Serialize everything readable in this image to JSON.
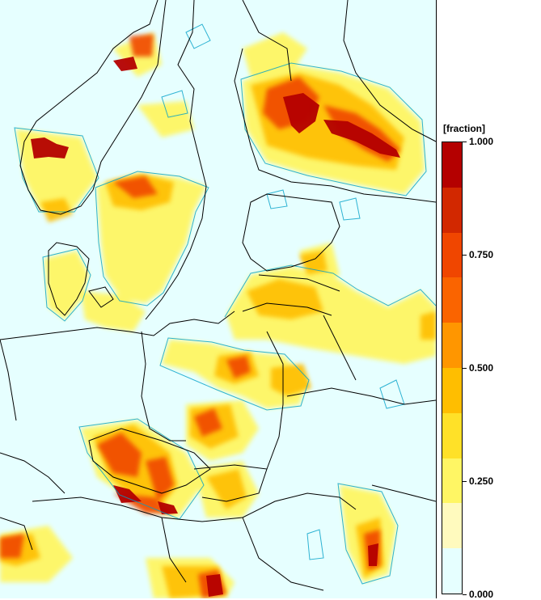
{
  "legend": {
    "unit": "[fraction]",
    "ticks": [
      {
        "value": 1.0,
        "label": "1.000"
      },
      {
        "value": 0.75,
        "label": "0.750"
      },
      {
        "value": 0.5,
        "label": "0.500"
      },
      {
        "value": 0.25,
        "label": "0.250"
      },
      {
        "value": 0.0,
        "label": "0.000"
      }
    ],
    "colors_top_to_bottom": [
      "#b40000",
      "#d22800",
      "#f04600",
      "#fa6400",
      "#ff9600",
      "#ffbe00",
      "#ffe128",
      "#fff664",
      "#fffabe",
      "#e6ffff"
    ],
    "min": 0.0,
    "max": 1.0
  },
  "map": {
    "background_color": "#e6ffff",
    "contour_color": "#00a0c8",
    "border_color": "#000000",
    "field_colors": {
      "low": "#fff664",
      "mid": "#ffbe00",
      "high": "#f04600",
      "max": "#b40000"
    }
  }
}
